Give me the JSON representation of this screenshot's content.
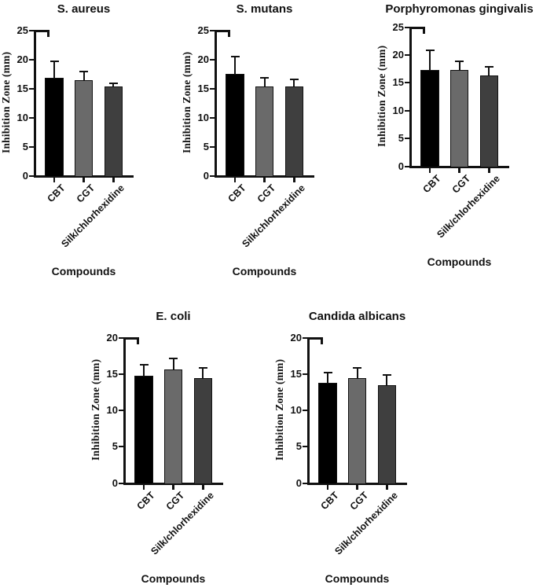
{
  "figure": {
    "background": "#ffffff",
    "colors": {
      "bar_palette": [
        "#000000",
        "#6a6a6a",
        "#3f3f3f"
      ],
      "bar_border": "#111111",
      "axis": "#111111",
      "error_bar": "#111111",
      "text": "#111111"
    }
  },
  "chart_data": [
    {
      "type": "bar",
      "title": "S. aureus",
      "xlabel": "Compounds",
      "ylabel": "Inhibition Zone (mm)",
      "categories": [
        "CBT",
        "CGT",
        "Silk/chlorhexidine"
      ],
      "values": [
        16.7,
        16.4,
        15.3
      ],
      "errors_plus": [
        3.0,
        1.6,
        0.7
      ],
      "ylim": [
        0,
        25
      ],
      "ytick_step": 5,
      "grid": false,
      "legend": false
    },
    {
      "type": "bar",
      "title": "S. mutans",
      "xlabel": "Compounds",
      "ylabel": "Inhibition Zone (mm)",
      "categories": [
        "CBT",
        "CGT",
        "Silk/chlorhexidine"
      ],
      "values": [
        17.4,
        15.3,
        15.3
      ],
      "errors_plus": [
        3.2,
        1.6,
        1.3
      ],
      "ylim": [
        0,
        25
      ],
      "ytick_step": 5,
      "grid": false,
      "legend": false
    },
    {
      "type": "bar",
      "title": "Porphyromonas gingivalis",
      "xlabel": "Compounds",
      "ylabel": "Inhibition Zone (mm)",
      "categories": [
        "CBT",
        "CGT",
        "Silk/chlorhexidine"
      ],
      "values": [
        17.3,
        17.3,
        16.3
      ],
      "errors_plus": [
        3.6,
        1.6,
        1.6
      ],
      "ylim": [
        0,
        25
      ],
      "ytick_step": 5,
      "grid": false,
      "legend": false
    },
    {
      "type": "bar",
      "title": "E. coli",
      "xlabel": "Compounds",
      "ylabel": "Inhibition Zone (mm)",
      "categories": [
        "CBT",
        "CGT",
        "Silk/chlorhexidine"
      ],
      "values": [
        14.7,
        15.6,
        14.4
      ],
      "errors_plus": [
        1.6,
        1.6,
        1.5
      ],
      "ylim": [
        0,
        20
      ],
      "ytick_step": 5,
      "grid": false,
      "legend": false
    },
    {
      "type": "bar",
      "title": "Candida albicans",
      "xlabel": "Compounds",
      "ylabel": "Inhibition Zone (mm)",
      "categories": [
        "CBT",
        "CGT",
        "Silk/chlorhexidine"
      ],
      "values": [
        13.7,
        14.4,
        13.4
      ],
      "errors_plus": [
        1.5,
        1.5,
        1.5
      ],
      "ylim": [
        0,
        20
      ],
      "ytick_step": 5,
      "grid": false,
      "legend": false
    }
  ]
}
